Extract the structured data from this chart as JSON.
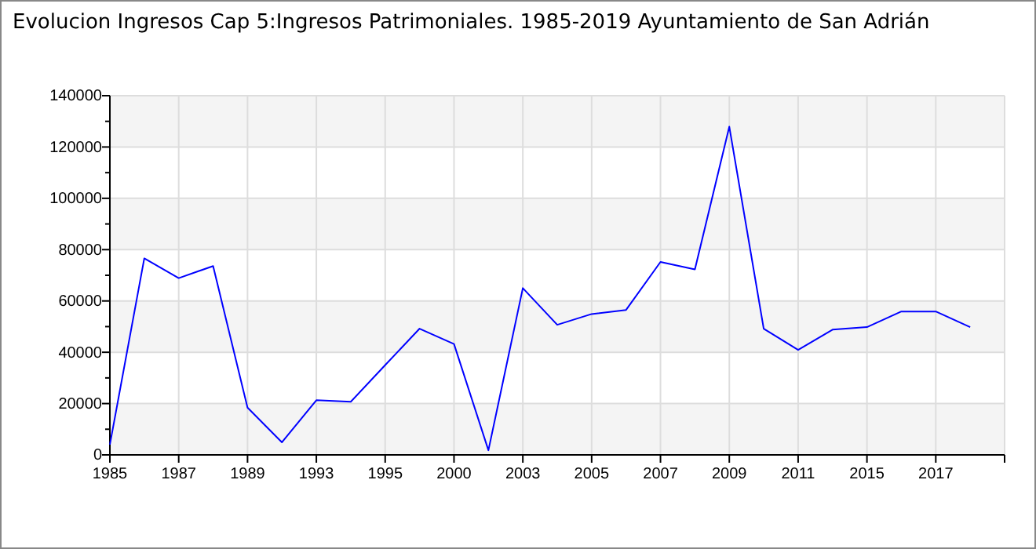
{
  "chart_data": {
    "type": "line",
    "title": "Evolucion Ingresos Cap 5:Ingresos Patrimoniales. 1985-2019 Ayuntamiento de San Adrián",
    "categories": [
      "1985",
      null,
      "1987",
      null,
      "1989",
      null,
      "1993",
      null,
      "1995",
      null,
      "2000",
      null,
      "2003",
      null,
      "2005",
      null,
      "2007",
      null,
      "2009",
      null,
      "2011",
      null,
      "2015",
      null,
      "2017",
      null
    ],
    "series": [
      {
        "color": "#0000ff",
        "values": [
          4000,
          76600,
          68900,
          73600,
          18400,
          4900,
          21300,
          20700,
          35000,
          49200,
          43200,
          1800,
          65000,
          50700,
          54900,
          56500,
          75200,
          72300,
          127900,
          49200,
          40900,
          48800,
          49800,
          55900,
          55900,
          49800
        ]
      }
    ],
    "ylim": [
      0,
      140000
    ],
    "yticks": [
      0,
      {
        "value": 10000,
        "label": null
      },
      20000,
      {
        "value": 30000,
        "label": null
      },
      40000,
      {
        "value": 50000,
        "label": null
      },
      60000,
      {
        "value": 70000,
        "label": null
      },
      80000,
      {
        "value": 90000,
        "label": null
      },
      100000,
      {
        "value": 110000,
        "label": null
      },
      120000,
      {
        "value": 130000,
        "label": null
      },
      140000
    ],
    "grid": true,
    "marker": "none",
    "line_style": "solid"
  }
}
